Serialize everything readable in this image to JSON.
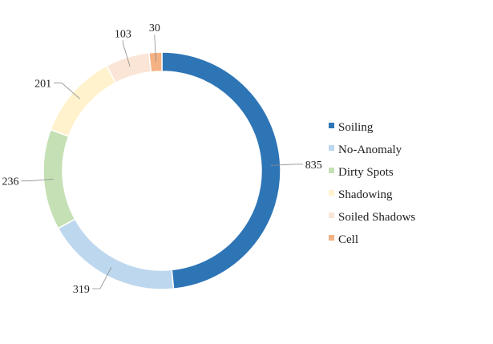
{
  "chart_data": {
    "type": "pie",
    "variant": "donut",
    "title": "",
    "categories": [
      "Soiling",
      "No-Anomaly",
      "Dirty Spots",
      "Shadowing",
      "Soiled Shadows",
      "Cell"
    ],
    "values": [
      835,
      319,
      236,
      201,
      103,
      30
    ],
    "data_labels": [
      "835",
      "319",
      "236",
      "201",
      "103",
      "30"
    ],
    "colors": [
      "#2e75b6",
      "#bdd7ee",
      "#c5e0b4",
      "#fff2cc",
      "#fbe5d6",
      "#f4b183"
    ],
    "start": "12 o'clock",
    "direction": "clockwise",
    "legend_position": "right"
  }
}
